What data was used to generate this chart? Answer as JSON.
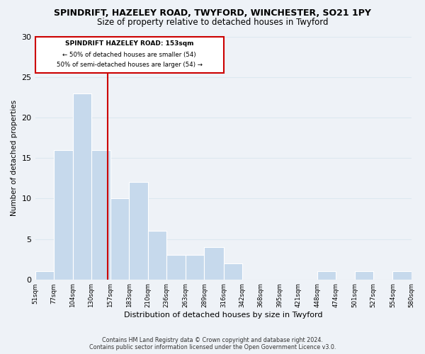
{
  "title": "SPINDRIFT, HAZELEY ROAD, TWYFORD, WINCHESTER, SO21 1PY",
  "subtitle": "Size of property relative to detached houses in Twyford",
  "xlabel": "Distribution of detached houses by size in Twyford",
  "ylabel": "Number of detached properties",
  "bin_edges": [
    51,
    77,
    104,
    130,
    157,
    183,
    210,
    236,
    263,
    289,
    316,
    342,
    368,
    395,
    421,
    448,
    474,
    501,
    527,
    554,
    580
  ],
  "bin_labels": [
    "51sqm",
    "77sqm",
    "104sqm",
    "130sqm",
    "157sqm",
    "183sqm",
    "210sqm",
    "236sqm",
    "263sqm",
    "289sqm",
    "316sqm",
    "342sqm",
    "368sqm",
    "395sqm",
    "421sqm",
    "448sqm",
    "474sqm",
    "501sqm",
    "527sqm",
    "554sqm",
    "580sqm"
  ],
  "counts": [
    1,
    16,
    23,
    16,
    10,
    12,
    6,
    3,
    3,
    4,
    2,
    0,
    0,
    0,
    0,
    1,
    0,
    1,
    0,
    1
  ],
  "bar_color": "#c6d9ec",
  "bar_edge_color": "#ffffff",
  "grid_color": "#dce8f0",
  "vline_x": 153,
  "vline_color": "#cc0000",
  "ylim": [
    0,
    30
  ],
  "yticks": [
    0,
    5,
    10,
    15,
    20,
    25,
    30
  ],
  "annotation_title": "SPINDRIFT HAZELEY ROAD: 153sqm",
  "annotation_line1": "← 50% of detached houses are smaller (54)",
  "annotation_line2": "50% of semi-detached houses are larger (54) →",
  "annotation_box_color": "#ffffff",
  "annotation_box_edge": "#cc0000",
  "footer1": "Contains HM Land Registry data © Crown copyright and database right 2024.",
  "footer2": "Contains public sector information licensed under the Open Government Licence v3.0.",
  "background_color": "#eef2f7",
  "plot_background_color": "#eef2f7"
}
